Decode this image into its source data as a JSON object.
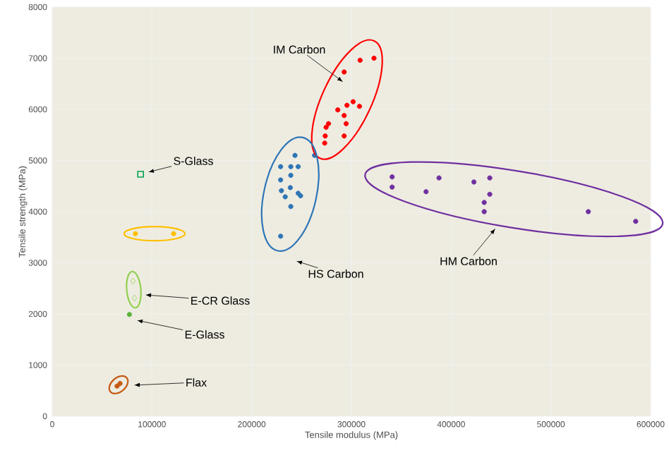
{
  "chart_data": {
    "type": "scatter",
    "xlabel": "Tensile modulus (MPa)",
    "ylabel": "Tensile strength (MPa)",
    "xlim": [
      0,
      600000
    ],
    "ylim": [
      0,
      8000
    ],
    "xticks": [
      0,
      100000,
      200000,
      300000,
      400000,
      500000,
      600000
    ],
    "yticks": [
      0,
      1000,
      2000,
      3000,
      4000,
      5000,
      6000,
      7000,
      8000
    ],
    "grid": true,
    "series": [
      {
        "color": "#ff0000",
        "marker": "circle",
        "x": [
          322600,
          292700,
          292700,
          292700,
          308700,
          301700,
          295500,
          308100,
          294700,
          277000,
          274600,
          273700,
          273200,
          286300
        ],
        "values": [
          7000,
          6730,
          5880,
          5480,
          6960,
          6150,
          6080,
          6060,
          5720,
          5720,
          5650,
          5480,
          5340,
          5990
        ]
      },
      {
        "color": "#2e75b6",
        "marker": "circle",
        "x": [
          229000,
          229000,
          239200,
          229800,
          233600,
          239200,
          246600,
          229000,
          239200,
          246600,
          243400,
          263000,
          238700,
          249000
        ],
        "values": [
          4880,
          3520,
          4880,
          4410,
          4290,
          4100,
          4880,
          4620,
          4710,
          4360,
          5100,
          5100,
          4470,
          4310
        ]
      },
      {
        "color": "#7030a0",
        "marker": "circle",
        "x": [
          340800,
          340800,
          374800,
          433100,
          433100,
          537500,
          585000,
          387800,
          422800,
          438700,
          438700
        ],
        "values": [
          4680,
          4480,
          4390,
          4180,
          4000,
          4000,
          3810,
          4660,
          4580,
          4660,
          4340
        ]
      },
      {
        "color": "#00a050",
        "marker": "square",
        "x": [
          88600
        ],
        "values": [
          4730
        ]
      },
      {
        "color": "#ffc000",
        "marker": "circle",
        "x": [
          83400,
          121700
        ],
        "values": [
          3570,
          3570
        ]
      },
      {
        "color": "#92d050",
        "marker": "diamond",
        "x": [
          81000,
          82500
        ],
        "values": [
          2640,
          2310
        ]
      },
      {
        "color": "#5cb43c",
        "marker": "circle",
        "x": [
          77400
        ],
        "values": [
          1990
        ]
      },
      {
        "color": "#c55a11",
        "marker": "circle",
        "x": [
          65000,
          68000
        ],
        "values": [
          590,
          640
        ]
      }
    ],
    "annotations": [
      "IM Carbon",
      "S-Glass",
      "HS Carbon",
      "HM Carbon",
      "E-CR Glass",
      "E-Glass",
      "Flax"
    ]
  }
}
